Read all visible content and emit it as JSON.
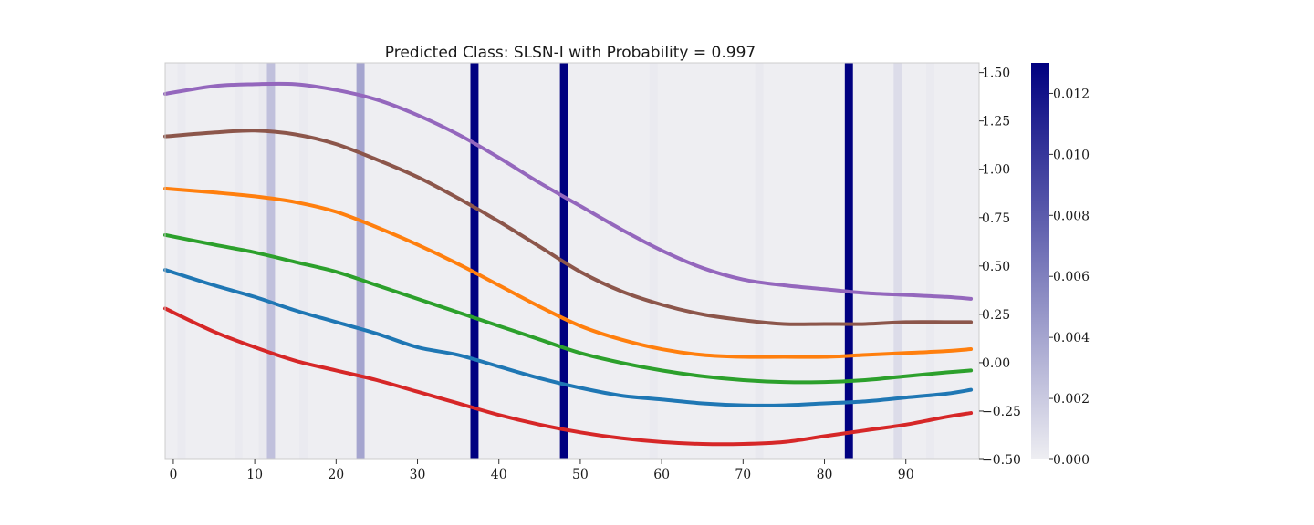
{
  "chart_data": {
    "type": "line",
    "title": "Predicted Class: SLSN-I with Probability = 0.997",
    "xlabel": "",
    "ylabel": "",
    "xlim": [
      -1,
      99
    ],
    "ylim": [
      -0.5,
      1.55
    ],
    "y_axis_position": "right",
    "grid": false,
    "legend": "none",
    "xticks": [
      0,
      10,
      20,
      30,
      40,
      50,
      60,
      70,
      80,
      90
    ],
    "yticks": [
      -0.5,
      -0.25,
      0.0,
      0.25,
      0.5,
      0.75,
      1.0,
      1.25,
      1.5
    ],
    "ytick_labels": [
      "−0.50",
      "−0.25",
      "0.00",
      "0.25",
      "0.50",
      "0.75",
      "1.00",
      "1.25",
      "1.50"
    ],
    "x": [
      -1,
      5,
      10,
      15,
      20,
      25,
      30,
      35,
      40,
      45,
      50,
      55,
      60,
      65,
      70,
      75,
      80,
      85,
      90,
      95,
      98
    ],
    "series": [
      {
        "color": "#d62728",
        "values": [
          0.28,
          0.16,
          0.08,
          0.01,
          -0.04,
          -0.09,
          -0.15,
          -0.21,
          -0.27,
          -0.32,
          -0.36,
          -0.39,
          -0.41,
          -0.42,
          -0.42,
          -0.41,
          -0.38,
          -0.35,
          -0.32,
          -0.28,
          -0.26
        ]
      },
      {
        "color": "#1f77b4",
        "values": [
          0.48,
          0.4,
          0.34,
          0.27,
          0.21,
          0.15,
          0.08,
          0.04,
          -0.02,
          -0.08,
          -0.13,
          -0.17,
          -0.19,
          -0.21,
          -0.22,
          -0.22,
          -0.21,
          -0.2,
          -0.18,
          -0.16,
          -0.14
        ]
      },
      {
        "color": "#2ca02c",
        "values": [
          0.66,
          0.61,
          0.57,
          0.52,
          0.47,
          0.4,
          0.33,
          0.26,
          0.19,
          0.12,
          0.05,
          0.0,
          -0.04,
          -0.07,
          -0.09,
          -0.1,
          -0.1,
          -0.09,
          -0.07,
          -0.05,
          -0.04
        ]
      },
      {
        "color": "#ff7f0e",
        "values": [
          0.9,
          0.88,
          0.86,
          0.83,
          0.78,
          0.7,
          0.61,
          0.51,
          0.4,
          0.29,
          0.19,
          0.12,
          0.07,
          0.04,
          0.03,
          0.03,
          0.03,
          0.04,
          0.05,
          0.06,
          0.07
        ]
      },
      {
        "color": "#8c564b",
        "values": [
          1.17,
          1.19,
          1.2,
          1.18,
          1.13,
          1.05,
          0.96,
          0.85,
          0.73,
          0.6,
          0.47,
          0.37,
          0.3,
          0.25,
          0.22,
          0.2,
          0.2,
          0.2,
          0.21,
          0.21,
          0.21
        ]
      },
      {
        "color": "#9467bd",
        "values": [
          1.39,
          1.43,
          1.44,
          1.44,
          1.41,
          1.36,
          1.28,
          1.18,
          1.06,
          0.93,
          0.81,
          0.69,
          0.58,
          0.49,
          0.43,
          0.4,
          0.38,
          0.36,
          0.35,
          0.34,
          0.33
        ]
      }
    ],
    "attention": {
      "cmap": [
        "#eeeef2",
        "#000080"
      ],
      "vmin": 0.0,
      "vmax": 0.013,
      "bands": [
        {
          "x0": 1,
          "x1": 2,
          "value": 0.0002
        },
        {
          "x0": 8,
          "x1": 9,
          "value": 0.0002
        },
        {
          "x0": 11,
          "x1": 12,
          "value": 0.0003
        },
        {
          "x0": 12,
          "x1": 13,
          "value": 0.0025
        },
        {
          "x0": 16,
          "x1": 17,
          "value": 0.0002
        },
        {
          "x0": 23,
          "x1": 24,
          "value": 0.004
        },
        {
          "x0": 37,
          "x1": 38,
          "value": 0.013
        },
        {
          "x0": 48,
          "x1": 49,
          "value": 0.013
        },
        {
          "x0": 59,
          "x1": 60,
          "value": 0.0002
        },
        {
          "x0": 72,
          "x1": 73,
          "value": 0.0003
        },
        {
          "x0": 83,
          "x1": 84,
          "value": 0.013
        },
        {
          "x0": 89,
          "x1": 90,
          "value": 0.001
        },
        {
          "x0": 93,
          "x1": 94,
          "value": 0.0002
        }
      ]
    },
    "colorbar": {
      "ticks": [
        0.0,
        0.002,
        0.004,
        0.006,
        0.008,
        0.01,
        0.012
      ],
      "tick_labels": [
        "0.000",
        "0.002",
        "0.004",
        "0.006",
        "0.008",
        "0.010",
        "0.012"
      ]
    }
  }
}
